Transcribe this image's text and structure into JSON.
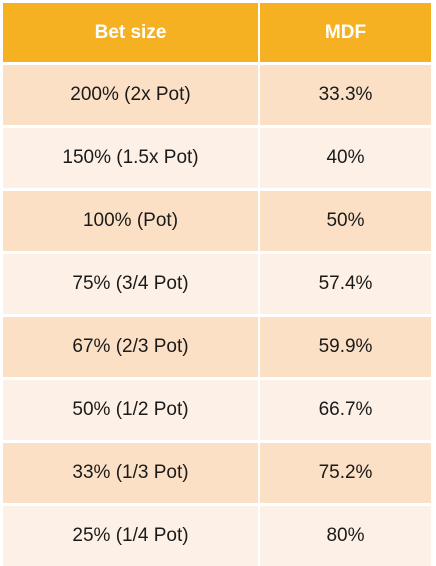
{
  "table": {
    "headers": [
      "Bet size",
      "MDF"
    ],
    "rows": [
      [
        "200% (2x Pot)",
        "33.3%"
      ],
      [
        "150% (1.5x Pot)",
        "40%"
      ],
      [
        "100% (Pot)",
        "50%"
      ],
      [
        "75% (3/4 Pot)",
        "57.4%"
      ],
      [
        "67% (2/3 Pot)",
        "59.9%"
      ],
      [
        "50% (1/2 Pot)",
        "66.7%"
      ],
      [
        "33% (1/3 Pot)",
        "75.2%"
      ],
      [
        "25% (1/4 Pot)",
        "80%"
      ]
    ]
  },
  "colors": {
    "header_bg": "#f6b123",
    "header_text": "#ffffff",
    "row_odd_bg": "#fbe0c6",
    "row_even_bg": "#fdf0e6"
  }
}
